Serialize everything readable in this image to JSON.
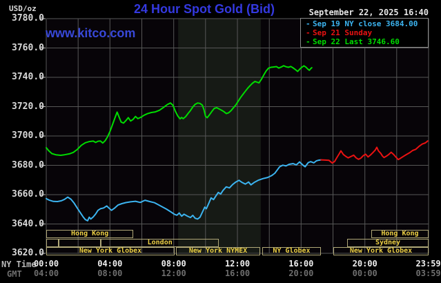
{
  "header": {
    "units_label": "USD/oz",
    "title": "24 Hour Spot Gold (Bid)",
    "datetime": "September 22, 2025 16:40",
    "watermark": "www.kitco.com"
  },
  "legend": {
    "items": [
      {
        "key": "sep19",
        "label": "Sep 19 NY close 3684.00"
      },
      {
        "key": "sep21",
        "label": "Sep 21 Sunday"
      },
      {
        "key": "sep22",
        "label": "Sep 22 Last 3746.60"
      }
    ]
  },
  "colors": {
    "title_blue": "#3439e0",
    "watermark_blue": "#3848d8",
    "sep19": "#3cb4f0",
    "sep21": "#ea1212",
    "sep22": "#00dd00",
    "grid": "#575757",
    "tick": "#c8c8c8",
    "plot_bg": "#070408",
    "band": "#161a15",
    "session_border": "#b0a878",
    "session_text": "#ecd044"
  },
  "axes": {
    "y_ticks": [
      "3780.0",
      "3760.0",
      "3740.0",
      "3720.0",
      "3700.0",
      "3680.0",
      "3660.0",
      "3640.0",
      "3620.0"
    ],
    "x_rows": [
      {
        "label": "NY Time",
        "ticks": [
          "00:00",
          "04:00",
          "08:00",
          "12:00",
          "16:00",
          "20:00",
          "23:59"
        ]
      },
      {
        "label": "GMT",
        "ticks": [
          "04:00",
          "08:00",
          "12:00",
          "16:00",
          "20:00",
          "00:00",
          "03:59"
        ]
      }
    ],
    "tick_hours": [
      0,
      4,
      8,
      12,
      16,
      20,
      23.983
    ]
  },
  "sessions": {
    "rows": [
      {
        "boxes": [
          {
            "label": "Hong Kong",
            "start": 0,
            "end": 5.47
          },
          {
            "label": "Hong Kong",
            "start": 20.4,
            "end": 24
          }
        ]
      },
      {
        "boxes": [
          {
            "label": "",
            "start": 0,
            "end": 0.78
          },
          {
            "label": "",
            "start": 0.78,
            "end": 3.44
          },
          {
            "label": "London",
            "start": 3.44,
            "end": 10.83
          },
          {
            "label": "Sydney",
            "start": 18.89,
            "end": 24
          }
        ]
      },
      {
        "boxes": [
          {
            "label": "New York Globex",
            "start": 0,
            "end": 8.06
          },
          {
            "label": "New York NYMEX",
            "start": 8.15,
            "end": 13.43
          },
          {
            "label": "NY Globex",
            "start": 13.56,
            "end": 17.24
          },
          {
            "label": "New York Globex",
            "start": 18.02,
            "end": 24
          }
        ]
      }
    ]
  },
  "chart_data": {
    "type": "line",
    "title": "24 Hour Spot Gold (Bid)",
    "y_axis": {
      "unit": "USD/oz",
      "min": 3620,
      "max": 3780,
      "tick_step": 20,
      "grid": true
    },
    "x_axis": {
      "range_hours": [
        0,
        24
      ],
      "grid_step_hours": 2,
      "ny_ticks": [
        "00:00",
        "04:00",
        "08:00",
        "12:00",
        "16:00",
        "20:00",
        "23:59"
      ],
      "gmt_ticks": [
        "04:00",
        "08:00",
        "12:00",
        "16:00",
        "20:00",
        "00:00",
        "03:59"
      ]
    },
    "nymex_floor_band": {
      "start": 8.28,
      "end": 13.47
    },
    "legend_position": "top-right",
    "series": [
      {
        "name": "Sep 19 NY close 3684.00",
        "key": "sep19",
        "points": [
          [
            0,
            3657.3
          ],
          [
            0.2,
            3656.2
          ],
          [
            0.45,
            3655.4
          ],
          [
            0.7,
            3655.3
          ],
          [
            0.95,
            3655.8
          ],
          [
            1.15,
            3656.8
          ],
          [
            1.35,
            3658.3
          ],
          [
            1.55,
            3656.9
          ],
          [
            1.75,
            3654.2
          ],
          [
            1.95,
            3650.8
          ],
          [
            2.15,
            3647.6
          ],
          [
            2.3,
            3645.1
          ],
          [
            2.45,
            3643.0
          ],
          [
            2.6,
            3642.2
          ],
          [
            2.7,
            3644.6
          ],
          [
            2.8,
            3643.4
          ],
          [
            2.95,
            3644.8
          ],
          [
            3.1,
            3646.8
          ],
          [
            3.25,
            3649.3
          ],
          [
            3.4,
            3650.4
          ],
          [
            3.6,
            3650.9
          ],
          [
            3.8,
            3652.3
          ],
          [
            3.95,
            3650.7
          ],
          [
            4.1,
            3649.3
          ],
          [
            4.3,
            3650.9
          ],
          [
            4.5,
            3652.9
          ],
          [
            4.75,
            3653.9
          ],
          [
            5.0,
            3654.6
          ],
          [
            5.3,
            3655.1
          ],
          [
            5.6,
            3655.5
          ],
          [
            5.9,
            3654.7
          ],
          [
            6.2,
            3656.2
          ],
          [
            6.5,
            3655.3
          ],
          [
            6.8,
            3654.5
          ],
          [
            7.05,
            3653.1
          ],
          [
            7.3,
            3651.6
          ],
          [
            7.55,
            3650.1
          ],
          [
            7.8,
            3648.4
          ],
          [
            8.05,
            3646.6
          ],
          [
            8.2,
            3646.0
          ],
          [
            8.35,
            3647.5
          ],
          [
            8.5,
            3645.3
          ],
          [
            8.65,
            3646.7
          ],
          [
            8.85,
            3645.4
          ],
          [
            9.05,
            3644.4
          ],
          [
            9.2,
            3645.9
          ],
          [
            9.35,
            3643.9
          ],
          [
            9.5,
            3643.4
          ],
          [
            9.65,
            3644.6
          ],
          [
            9.8,
            3648.0
          ],
          [
            9.95,
            3651.5
          ],
          [
            10.05,
            3650.4
          ],
          [
            10.2,
            3654.0
          ],
          [
            10.35,
            3657.8
          ],
          [
            10.5,
            3656.6
          ],
          [
            10.65,
            3659.1
          ],
          [
            10.8,
            3661.5
          ],
          [
            10.95,
            3660.4
          ],
          [
            11.1,
            3662.9
          ],
          [
            11.3,
            3665.3
          ],
          [
            11.5,
            3664.6
          ],
          [
            11.7,
            3666.9
          ],
          [
            11.9,
            3668.6
          ],
          [
            12.1,
            3669.8
          ],
          [
            12.3,
            3668.3
          ],
          [
            12.5,
            3667.2
          ],
          [
            12.7,
            3668.6
          ],
          [
            12.85,
            3666.7
          ],
          [
            13.05,
            3668.3
          ],
          [
            13.3,
            3669.8
          ],
          [
            13.6,
            3670.9
          ],
          [
            13.9,
            3671.7
          ],
          [
            14.15,
            3673.0
          ],
          [
            14.35,
            3674.6
          ],
          [
            14.5,
            3676.8
          ],
          [
            14.65,
            3679.0
          ],
          [
            14.85,
            3680.1
          ],
          [
            15.05,
            3679.6
          ],
          [
            15.25,
            3680.7
          ],
          [
            15.5,
            3681.2
          ],
          [
            15.7,
            3680.3
          ],
          [
            15.9,
            3682.3
          ],
          [
            16.1,
            3680.3
          ],
          [
            16.25,
            3679.0
          ],
          [
            16.45,
            3681.9
          ],
          [
            16.6,
            3682.5
          ],
          [
            16.8,
            3681.7
          ],
          [
            16.95,
            3683.0
          ],
          [
            17.1,
            3683.5
          ],
          [
            17.25,
            3683.7
          ]
        ]
      },
      {
        "name": "Sep 21 Sunday",
        "key": "sep21",
        "points": [
          [
            17.25,
            3683.7
          ],
          [
            17.5,
            3683.6
          ],
          [
            17.75,
            3683.4
          ],
          [
            17.95,
            3681.6
          ],
          [
            18.1,
            3682.6
          ],
          [
            18.25,
            3685.4
          ],
          [
            18.4,
            3688.0
          ],
          [
            18.5,
            3689.9
          ],
          [
            18.65,
            3687.4
          ],
          [
            18.8,
            3686.1
          ],
          [
            18.95,
            3685.1
          ],
          [
            19.15,
            3686.1
          ],
          [
            19.3,
            3686.9
          ],
          [
            19.45,
            3685.1
          ],
          [
            19.6,
            3684.1
          ],
          [
            19.75,
            3684.9
          ],
          [
            19.9,
            3686.6
          ],
          [
            20.05,
            3687.6
          ],
          [
            20.2,
            3685.7
          ],
          [
            20.35,
            3687.0
          ],
          [
            20.5,
            3688.6
          ],
          [
            20.65,
            3690.4
          ],
          [
            20.75,
            3692.3
          ],
          [
            20.85,
            3689.9
          ],
          [
            21.0,
            3688.1
          ],
          [
            21.1,
            3686.4
          ],
          [
            21.2,
            3685.3
          ],
          [
            21.35,
            3686.2
          ],
          [
            21.5,
            3687.4
          ],
          [
            21.65,
            3688.9
          ],
          [
            21.8,
            3687.5
          ],
          [
            21.95,
            3685.6
          ],
          [
            22.1,
            3683.9
          ],
          [
            22.25,
            3684.9
          ],
          [
            22.4,
            3686.0
          ],
          [
            22.6,
            3687.3
          ],
          [
            22.8,
            3688.5
          ],
          [
            23.0,
            3690.1
          ],
          [
            23.2,
            3690.9
          ],
          [
            23.4,
            3692.9
          ],
          [
            23.6,
            3694.5
          ],
          [
            23.8,
            3695.3
          ],
          [
            23.95,
            3696.6
          ]
        ]
      },
      {
        "name": "Sep 22 Last 3746.60",
        "key": "sep22",
        "points": [
          [
            0,
            3692.0
          ],
          [
            0.15,
            3690.0
          ],
          [
            0.35,
            3688.0
          ],
          [
            0.6,
            3687.2
          ],
          [
            0.9,
            3686.8
          ],
          [
            1.15,
            3687.2
          ],
          [
            1.45,
            3687.8
          ],
          [
            1.7,
            3688.8
          ],
          [
            1.95,
            3690.8
          ],
          [
            2.2,
            3693.6
          ],
          [
            2.45,
            3695.4
          ],
          [
            2.7,
            3696.2
          ],
          [
            2.95,
            3696.5
          ],
          [
            3.1,
            3695.6
          ],
          [
            3.25,
            3696.4
          ],
          [
            3.4,
            3696.6
          ],
          [
            3.55,
            3695.2
          ],
          [
            3.7,
            3696.8
          ],
          [
            3.85,
            3699.5
          ],
          [
            4.0,
            3703.0
          ],
          [
            4.15,
            3707.5
          ],
          [
            4.3,
            3712.0
          ],
          [
            4.45,
            3716.3
          ],
          [
            4.55,
            3713.5
          ],
          [
            4.7,
            3709.5
          ],
          [
            4.85,
            3708.8
          ],
          [
            5.0,
            3710.5
          ],
          [
            5.15,
            3712.5
          ],
          [
            5.3,
            3710.2
          ],
          [
            5.45,
            3711.3
          ],
          [
            5.6,
            3713.3
          ],
          [
            5.75,
            3711.8
          ],
          [
            5.95,
            3712.8
          ],
          [
            6.15,
            3714.2
          ],
          [
            6.35,
            3715.2
          ],
          [
            6.6,
            3716.0
          ],
          [
            6.85,
            3716.4
          ],
          [
            7.1,
            3717.5
          ],
          [
            7.35,
            3719.4
          ],
          [
            7.6,
            3721.4
          ],
          [
            7.8,
            3722.5
          ],
          [
            7.95,
            3721.0
          ],
          [
            8.1,
            3717.0
          ],
          [
            8.25,
            3713.8
          ],
          [
            8.4,
            3711.7
          ],
          [
            8.5,
            3712.6
          ],
          [
            8.6,
            3711.8
          ],
          [
            8.75,
            3713.2
          ],
          [
            8.9,
            3715.3
          ],
          [
            9.05,
            3717.3
          ],
          [
            9.2,
            3719.8
          ],
          [
            9.35,
            3721.6
          ],
          [
            9.5,
            3722.5
          ],
          [
            9.65,
            3722.2
          ],
          [
            9.8,
            3721.0
          ],
          [
            9.9,
            3718.0
          ],
          [
            10.0,
            3713.5
          ],
          [
            10.1,
            3712.4
          ],
          [
            10.25,
            3714.5
          ],
          [
            10.4,
            3716.8
          ],
          [
            10.55,
            3718.8
          ],
          [
            10.7,
            3719.3
          ],
          [
            10.85,
            3718.4
          ],
          [
            11.0,
            3717.6
          ],
          [
            11.15,
            3716.6
          ],
          [
            11.3,
            3715.3
          ],
          [
            11.45,
            3715.8
          ],
          [
            11.6,
            3717.3
          ],
          [
            11.75,
            3719.2
          ],
          [
            11.9,
            3721.2
          ],
          [
            12.05,
            3723.7
          ],
          [
            12.2,
            3726.2
          ],
          [
            12.35,
            3728.4
          ],
          [
            12.5,
            3730.5
          ],
          [
            12.65,
            3732.6
          ],
          [
            12.8,
            3734.4
          ],
          [
            12.95,
            3736.0
          ],
          [
            13.1,
            3737.2
          ],
          [
            13.25,
            3736.6
          ],
          [
            13.35,
            3736.2
          ],
          [
            13.5,
            3738.5
          ],
          [
            13.65,
            3741.5
          ],
          [
            13.8,
            3744.3
          ],
          [
            13.95,
            3746.2
          ],
          [
            14.1,
            3746.8
          ],
          [
            14.25,
            3747.0
          ],
          [
            14.45,
            3747.3
          ],
          [
            14.6,
            3746.3
          ],
          [
            14.75,
            3747.0
          ],
          [
            14.9,
            3747.9
          ],
          [
            15.05,
            3747.2
          ],
          [
            15.2,
            3746.8
          ],
          [
            15.35,
            3747.4
          ],
          [
            15.5,
            3746.4
          ],
          [
            15.65,
            3745.2
          ],
          [
            15.78,
            3744.0
          ],
          [
            15.9,
            3745.4
          ],
          [
            16.05,
            3746.9
          ],
          [
            16.18,
            3747.8
          ],
          [
            16.3,
            3746.9
          ],
          [
            16.42,
            3745.6
          ],
          [
            16.52,
            3744.8
          ],
          [
            16.6,
            3745.9
          ],
          [
            16.67,
            3746.6
          ]
        ]
      }
    ]
  }
}
